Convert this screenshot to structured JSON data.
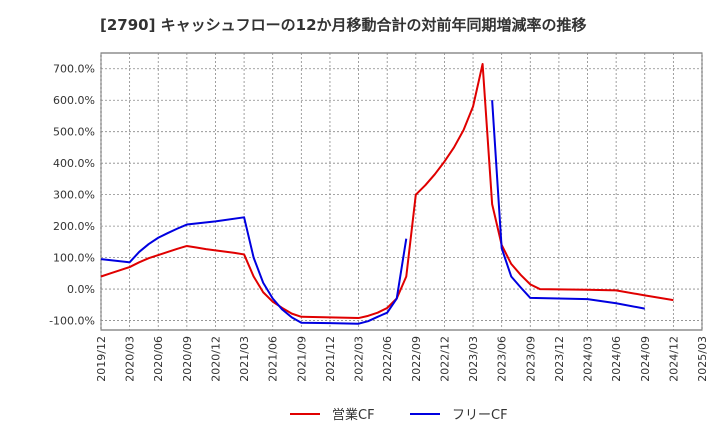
{
  "chart_data": {
    "type": "line",
    "title": "[2790]  キャッシュフローの12か月移動合計の対前年同期増減率の推移",
    "xlabel": "",
    "ylabel": "",
    "ylim": [
      -130,
      750
    ],
    "yticks": [
      -100,
      0,
      100,
      200,
      300,
      400,
      500,
      600,
      700
    ],
    "ytick_labels": [
      "-100.0%",
      "0.0%",
      "100.0%",
      "200.0%",
      "300.0%",
      "400.0%",
      "500.0%",
      "600.0%",
      "700.0%"
    ],
    "x_start": "2019/12",
    "x_end": "2025/03",
    "x_tick_labels": [
      "2019/12",
      "2020/03",
      "2020/06",
      "2020/09",
      "2020/12",
      "2021/03",
      "2021/06",
      "2021/09",
      "2021/12",
      "2022/03",
      "2022/06",
      "2022/09",
      "2022/12",
      "2023/03",
      "2023/06",
      "2023/09",
      "2023/12",
      "2024/03",
      "2024/06",
      "2024/09",
      "2024/12",
      "2025/03"
    ],
    "grid": true,
    "legend_position": "bottom-center",
    "series": [
      {
        "name": "営業CF",
        "color": "#e00000",
        "points": [
          {
            "x": "2019/12",
            "y": 40
          },
          {
            "x": "2020/01",
            "y": 50
          },
          {
            "x": "2020/02",
            "y": 60
          },
          {
            "x": "2020/03",
            "y": 70
          },
          {
            "x": "2020/04",
            "y": 85
          },
          {
            "x": "2020/05",
            "y": 98
          },
          {
            "x": "2020/06",
            "y": 108
          },
          {
            "x": "2020/07",
            "y": 118
          },
          {
            "x": "2020/08",
            "y": 128
          },
          {
            "x": "2020/09",
            "y": 137
          },
          {
            "x": "2020/10",
            "y": 132
          },
          {
            "x": "2020/11",
            "y": 127
          },
          {
            "x": "2020/12",
            "y": 123
          },
          {
            "x": "2021/01",
            "y": 119
          },
          {
            "x": "2021/02",
            "y": 115
          },
          {
            "x": "2021/03",
            "y": 110
          },
          {
            "x": "2021/04",
            "y": 40
          },
          {
            "x": "2021/05",
            "y": -10
          },
          {
            "x": "2021/06",
            "y": -40
          },
          {
            "x": "2021/07",
            "y": -60
          },
          {
            "x": "2021/08",
            "y": -78
          },
          {
            "x": "2021/09",
            "y": -88
          },
          {
            "x": "2021/12",
            "y": -90
          },
          {
            "x": "2022/03",
            "y": -92
          },
          {
            "x": "2022/04",
            "y": -85
          },
          {
            "x": "2022/05",
            "y": -75
          },
          {
            "x": "2022/06",
            "y": -60
          },
          {
            "x": "2022/07",
            "y": -30
          },
          {
            "x": "2022/08",
            "y": 40
          },
          {
            "x": "2022/09",
            "y": 300
          },
          {
            "x": "2022/10",
            "y": 330
          },
          {
            "x": "2022/11",
            "y": 365
          },
          {
            "x": "2022/12",
            "y": 405
          },
          {
            "x": "2023/01",
            "y": 450
          },
          {
            "x": "2023/02",
            "y": 505
          },
          {
            "x": "2023/03",
            "y": 580
          },
          {
            "x": "2023/04",
            "y": 715
          },
          {
            "x": "2023/05",
            "y": 270
          },
          {
            "x": "2023/06",
            "y": 140
          },
          {
            "x": "2023/07",
            "y": 80
          },
          {
            "x": "2023/08",
            "y": 45
          },
          {
            "x": "2023/09",
            "y": 15
          },
          {
            "x": "2023/10",
            "y": 0
          },
          {
            "x": "2023/12",
            "y": -1
          },
          {
            "x": "2024/03",
            "y": -2
          },
          {
            "x": "2024/06",
            "y": -4
          },
          {
            "x": "2024/09",
            "y": -20
          },
          {
            "x": "2024/12",
            "y": -35
          }
        ]
      },
      {
        "name": "フリーCF",
        "color": "#0000e0",
        "points": [
          {
            "x": "2019/12",
            "y": 95
          },
          {
            "x": "2020/03",
            "y": 85
          },
          {
            "x": "2020/04",
            "y": 118
          },
          {
            "x": "2020/05",
            "y": 143
          },
          {
            "x": "2020/06",
            "y": 163
          },
          {
            "x": "2020/07",
            "y": 178
          },
          {
            "x": "2020/08",
            "y": 192
          },
          {
            "x": "2020/09",
            "y": 205
          },
          {
            "x": "2020/12",
            "y": 215
          },
          {
            "x": "2021/03",
            "y": 228
          },
          {
            "x": "2021/04",
            "y": 100
          },
          {
            "x": "2021/05",
            "y": 20
          },
          {
            "x": "2021/06",
            "y": -30
          },
          {
            "x": "2021/07",
            "y": -65
          },
          {
            "x": "2021/08",
            "y": -90
          },
          {
            "x": "2021/09",
            "y": -107
          },
          {
            "x": "2021/12",
            "y": -108
          },
          {
            "x": "2022/03",
            "y": -110
          },
          {
            "x": "2022/04",
            "y": -102
          },
          {
            "x": "2022/05",
            "y": -88
          },
          {
            "x": "2022/06",
            "y": -75
          },
          {
            "x": "2022/07",
            "y": -30
          },
          {
            "x": "2022/08",
            "y": 160
          },
          null,
          {
            "x": "2023/05",
            "y": 600
          },
          {
            "x": "2023/06",
            "y": 130
          },
          {
            "x": "2023/07",
            "y": 40
          },
          {
            "x": "2023/08",
            "y": 5
          },
          {
            "x": "2023/09",
            "y": -28
          },
          {
            "x": "2023/12",
            "y": -30
          },
          {
            "x": "2024/03",
            "y": -32
          },
          {
            "x": "2024/06",
            "y": -45
          },
          {
            "x": "2024/09",
            "y": -62
          }
        ]
      }
    ]
  }
}
